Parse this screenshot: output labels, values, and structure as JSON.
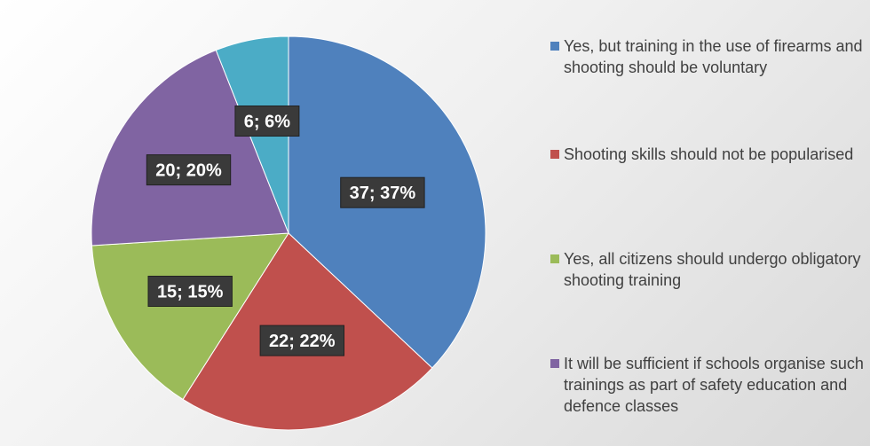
{
  "chart_data": {
    "type": "pie",
    "title": "",
    "slices": [
      {
        "label": "Yes, but training in the use of firearms and shooting should be voluntary",
        "value": 37,
        "percent": "37%",
        "data_label": "37; 37%",
        "color": "#4F81BD"
      },
      {
        "label": "Shooting skills should not be popularised",
        "value": 22,
        "percent": "22%",
        "data_label": "22; 22%",
        "color": "#C0504D"
      },
      {
        "label": "Yes, all citizens should undergo obligatory shooting training",
        "value": 15,
        "percent": "15%",
        "data_label": "15; 15%",
        "color": "#9BBB59"
      },
      {
        "label": "It will be sufficient if schools organise such trainings as part of safety education and defence classes",
        "value": 20,
        "percent": "20%",
        "data_label": "20; 20%",
        "color": "#8064A2"
      },
      {
        "label": "",
        "value": 6,
        "percent": "6%",
        "data_label": "6; 6%",
        "color": "#4BACC6"
      }
    ],
    "legend_position": "right",
    "label_style": "dark-box"
  }
}
